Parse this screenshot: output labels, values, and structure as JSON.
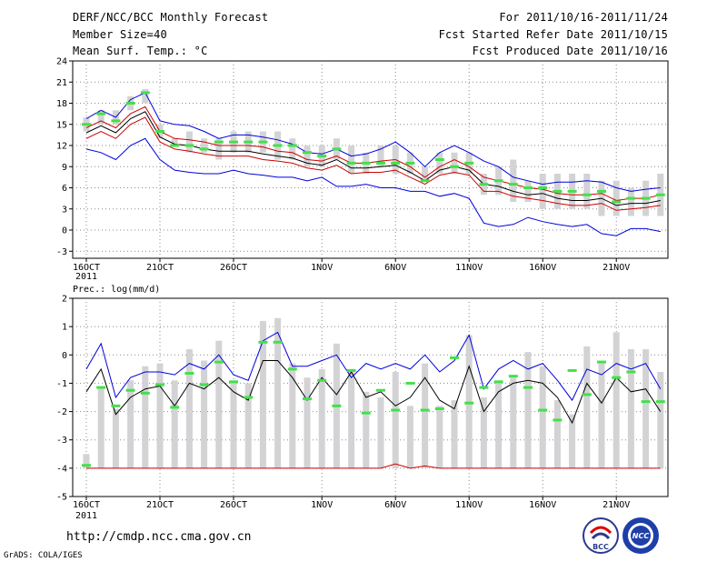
{
  "header": {
    "title": "DERF/NCC/BCC Monthly Forecast",
    "member_size": "Member Size=40",
    "variable": "Mean Surf. Temp.: °C",
    "period": "For 2011/10/16-2011/11/24",
    "started": "Fcst Started Refer Date 2011/10/15",
    "produced": "Fcst Produced Date 2011/10/16"
  },
  "footer": {
    "url": "http://cmdp.ncc.cma.gov.cn",
    "credit": "GrADS: COLA/IGES",
    "logo_left": "BCC",
    "logo_right": "NCC"
  },
  "chart_data": [
    {
      "type": "line",
      "title": "Mean Surf. Temp.: °C",
      "ylim": [
        -4,
        24
      ],
      "yticks": [
        -3,
        0,
        3,
        6,
        9,
        12,
        15,
        18,
        21,
        24
      ],
      "xlabels": [
        "16OCT",
        "21OCT",
        "26OCT",
        "1NOV",
        "6NOV",
        "11NOV",
        "16NOV",
        "21NOV"
      ],
      "xlabel_index": [
        0,
        5,
        10,
        16,
        21,
        26,
        31,
        36
      ],
      "year_label": "2011",
      "days": 40,
      "series": [
        {
          "name": "max",
          "color": "#0000dd",
          "values": [
            15.8,
            17.0,
            16.0,
            18.5,
            19.5,
            15.5,
            15.0,
            14.8,
            14.0,
            13.0,
            13.5,
            13.5,
            13.2,
            12.8,
            12.2,
            11.0,
            10.8,
            11.5,
            10.5,
            10.8,
            11.5,
            12.5,
            11.0,
            9.0,
            11.0,
            12.0,
            11.0,
            9.8,
            9.0,
            7.5,
            7.0,
            6.5,
            6.8,
            6.8,
            7.0,
            6.8,
            6.0,
            5.5,
            5.8,
            6.0
          ]
        },
        {
          "name": "upper",
          "color": "#cc0000",
          "values": [
            14.5,
            15.5,
            14.5,
            16.5,
            17.5,
            14.0,
            13.0,
            12.8,
            12.5,
            12.0,
            12.0,
            12.0,
            11.8,
            11.2,
            11.0,
            10.0,
            9.8,
            10.5,
            9.5,
            9.5,
            9.8,
            10.0,
            9.0,
            7.5,
            9.0,
            10.0,
            9.0,
            7.5,
            7.0,
            6.5,
            6.0,
            5.8,
            5.2,
            5.0,
            5.0,
            5.2,
            4.2,
            4.5,
            4.5,
            5.0
          ]
        },
        {
          "name": "mean",
          "color": "#000000",
          "values": [
            13.8,
            14.8,
            13.8,
            15.8,
            16.8,
            13.2,
            12.2,
            12.0,
            11.5,
            11.2,
            11.2,
            11.2,
            10.8,
            10.5,
            10.2,
            9.5,
            9.2,
            10.0,
            8.8,
            8.8,
            9.0,
            9.2,
            8.2,
            7.0,
            8.5,
            9.0,
            8.5,
            6.5,
            6.2,
            5.5,
            5.0,
            5.2,
            4.5,
            4.2,
            4.2,
            4.5,
            3.5,
            3.8,
            3.8,
            4.2
          ]
        },
        {
          "name": "lower",
          "color": "#cc0000",
          "values": [
            13.0,
            14.0,
            13.0,
            15.0,
            16.0,
            12.5,
            11.5,
            11.2,
            10.8,
            10.5,
            10.5,
            10.5,
            10.0,
            9.8,
            9.5,
            8.8,
            8.5,
            9.2,
            8.0,
            8.2,
            8.2,
            8.5,
            7.5,
            6.5,
            7.8,
            8.2,
            7.8,
            5.5,
            5.5,
            4.8,
            4.5,
            4.2,
            3.8,
            3.5,
            3.5,
            3.8,
            2.8,
            3.0,
            3.2,
            3.5
          ]
        },
        {
          "name": "min",
          "color": "#0000dd",
          "values": [
            11.5,
            11.0,
            10.0,
            12.0,
            13.0,
            10.0,
            8.5,
            8.2,
            8.0,
            8.0,
            8.5,
            8.0,
            7.8,
            7.5,
            7.5,
            7.0,
            7.5,
            6.2,
            6.2,
            6.5,
            6.0,
            6.0,
            5.5,
            5.5,
            4.8,
            5.2,
            4.5,
            1.0,
            0.5,
            0.8,
            1.8,
            1.2,
            0.8,
            0.5,
            0.8,
            -0.5,
            -0.8,
            0.2,
            0.2,
            -0.2
          ]
        }
      ],
      "box_low": [
        14,
        15,
        15,
        17,
        18,
        13,
        12,
        11,
        11,
        10,
        11,
        11,
        11,
        10,
        10,
        9,
        9,
        10,
        8,
        8,
        9,
        8,
        8,
        7,
        8,
        8,
        8,
        5,
        5,
        4,
        4,
        3,
        3,
        3,
        3,
        2,
        2,
        2,
        2,
        2
      ],
      "box_high": [
        16,
        17,
        17,
        19,
        20,
        15,
        13,
        14,
        13,
        13,
        14,
        14,
        14,
        14,
        13,
        12,
        12,
        13,
        12,
        11,
        12,
        12,
        11,
        9,
        11,
        11,
        11,
        8,
        9,
        10,
        7,
        8,
        8,
        8,
        8,
        7,
        7,
        6,
        7,
        8
      ],
      "observed": [
        15.0,
        16.5,
        15.5,
        18.0,
        19.5,
        14.0,
        12.0,
        12.0,
        11.5,
        12.5,
        12.5,
        12.5,
        12.5,
        12.0,
        12.0,
        11.0,
        10.5,
        11.5,
        9.5,
        9.5,
        9.5,
        9.5,
        9.5,
        7.0,
        10.0,
        9.0,
        9.5,
        6.5,
        7.0,
        6.5,
        6.0,
        6.0,
        5.5,
        5.5,
        5.0,
        5.5,
        4.0,
        4.5,
        4.5,
        5.0
      ]
    },
    {
      "type": "line",
      "title": "Prec.: log(mm/d)",
      "ylim": [
        -5,
        2
      ],
      "yticks": [
        -5,
        -4,
        -3,
        -2,
        -1,
        0,
        1,
        2
      ],
      "xlabels": [
        "16OCT",
        "21OCT",
        "26OCT",
        "1NOV",
        "6NOV",
        "11NOV",
        "16NOV",
        "21NOV"
      ],
      "xlabel_index": [
        0,
        5,
        10,
        16,
        21,
        26,
        31,
        36
      ],
      "year_label": "2011",
      "days": 40,
      "series": [
        {
          "name": "max",
          "color": "#0000dd",
          "values": [
            -0.5,
            0.4,
            -1.5,
            -0.8,
            -0.6,
            -0.6,
            -0.7,
            -0.3,
            -0.5,
            0.0,
            -0.7,
            -0.9,
            0.5,
            0.8,
            -0.4,
            -0.4,
            -0.2,
            0.0,
            -0.8,
            -0.3,
            -0.5,
            -0.3,
            -0.5,
            0.0,
            -0.6,
            -0.2,
            0.7,
            -1.2,
            -0.5,
            -0.2,
            -0.5,
            -0.3,
            -0.9,
            -1.6,
            -0.5,
            -0.7,
            -0.3,
            -0.5,
            -0.3,
            -1.2
          ]
        },
        {
          "name": "mean",
          "color": "#000000",
          "values": [
            -1.3,
            -0.5,
            -2.1,
            -1.5,
            -1.2,
            -1.1,
            -1.8,
            -1.0,
            -1.2,
            -0.8,
            -1.3,
            -1.6,
            -0.2,
            -0.2,
            -0.8,
            -1.6,
            -0.8,
            -1.4,
            -0.6,
            -1.5,
            -1.3,
            -1.8,
            -1.5,
            -0.8,
            -1.6,
            -1.9,
            -0.4,
            -2.0,
            -1.3,
            -1.0,
            -0.9,
            -1.0,
            -1.5,
            -2.4,
            -1.0,
            -1.7,
            -0.8,
            -1.3,
            -1.2,
            -2.0
          ]
        },
        {
          "name": "lower",
          "color": "#cc0000",
          "values": [
            -4.0,
            -4.0,
            -4.0,
            -4.0,
            -4.0,
            -4.0,
            -4.0,
            -4.0,
            -4.0,
            -4.0,
            -4.0,
            -4.0,
            -4.0,
            -4.0,
            -4.0,
            -4.0,
            -4.0,
            -4.0,
            -4.0,
            -4.0,
            -4.0,
            -3.85,
            -4.0,
            -3.92,
            -4.0,
            -4.0,
            -4.0,
            -4.0,
            -4.0,
            -4.0,
            -4.0,
            -4.0,
            -4.0,
            -4.0,
            -4.0,
            -4.0,
            -4.0,
            -4.0,
            -4.0,
            -4.0
          ]
        }
      ],
      "box_low": -4,
      "box_high": [
        -3.5,
        -1.2,
        -1.9,
        -0.9,
        -0.4,
        -0.3,
        -0.9,
        0.2,
        -0.2,
        0.5,
        -0.9,
        -1.0,
        1.2,
        1.3,
        -0.3,
        -0.8,
        -0.5,
        0.4,
        -0.5,
        -1.3,
        -1.5,
        -0.6,
        -1.8,
        -0.3,
        -1.8,
        -1.6,
        0.7,
        -1.5,
        -0.9,
        -0.8,
        0.1,
        -0.4,
        -1.6,
        -2.1,
        0.3,
        -0.3,
        0.8,
        0.2,
        0.2,
        -0.6
      ],
      "observed": [
        -3.9,
        -1.15,
        -1.8,
        -1.25,
        -1.35,
        -1.05,
        -1.85,
        -0.65,
        -1.05,
        -0.25,
        -0.95,
        -1.5,
        0.45,
        0.45,
        -0.5,
        -1.55,
        -0.9,
        -1.8,
        -0.55,
        -2.05,
        -1.25,
        -1.95,
        -1.0,
        -1.95,
        -1.9,
        -0.1,
        -1.7,
        -1.15,
        -0.95,
        -0.75,
        -1.15,
        -1.95,
        -2.3,
        -0.55,
        -1.4,
        -0.25,
        -0.8,
        -0.6,
        -1.65,
        -1.65
      ]
    }
  ]
}
